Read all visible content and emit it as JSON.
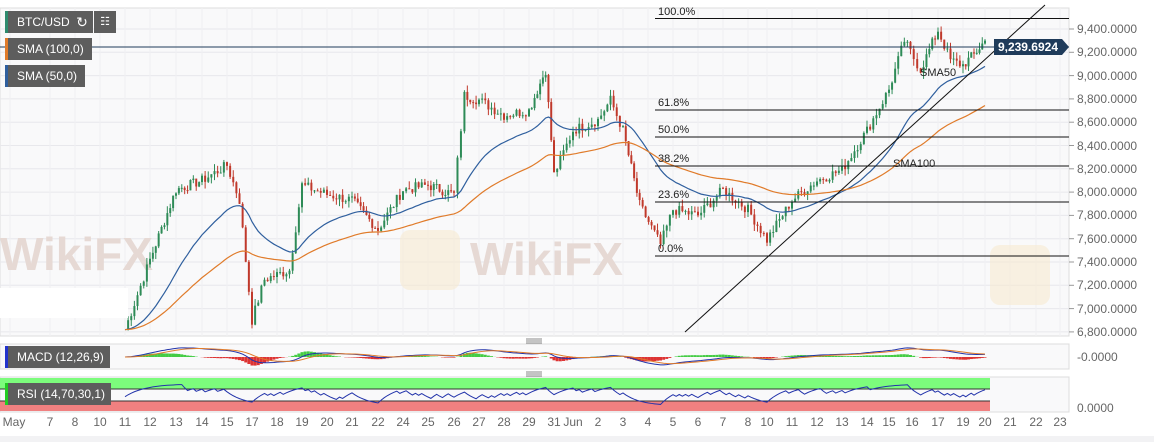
{
  "toolbar": {
    "symbol": "BTC/USD",
    "refresh_icon": "refresh-icon",
    "bars_icon": "bar-chart-icon"
  },
  "indicators": {
    "sma100": "SMA (100,0)",
    "sma50": "SMA (50,0)",
    "macd": "MACD (12,26,9)",
    "rsi": "RSI (14,70,30,1)"
  },
  "colors": {
    "up": "#2e8b57",
    "down": "#c0392b",
    "sma50": "#2f5f9e",
    "sma100": "#e07b2a",
    "current_price": "#1f3b5a",
    "rsi_overbought": "#7cfc7c",
    "rsi_oversold": "#f08080"
  },
  "current_price": "9,239.6924",
  "chart_data": {
    "type": "line",
    "y_ticks": [
      "9,400.0000",
      "9,200.0000",
      "9,000.0000",
      "8,800.0000",
      "8,600.0000",
      "8,400.0000",
      "8,200.0000",
      "8,000.0000",
      "7,800.0000",
      "7,600.0000",
      "7,400.0000",
      "7,200.0000",
      "7,000.0000",
      "6,800.0000"
    ],
    "ylim": [
      6800,
      9400
    ],
    "x_ticks": [
      "May",
      "7",
      "8",
      "10",
      "11",
      "12",
      "13",
      "14",
      "15",
      "17",
      "18",
      "19",
      "20",
      "21",
      "22",
      "24",
      "25",
      "26",
      "27",
      "28",
      "29",
      "31",
      "Jun",
      "2",
      "3",
      "4",
      "5",
      "6",
      "7",
      "8",
      "10",
      "11",
      "12",
      "13",
      "14",
      "15",
      "16",
      "17",
      "19",
      "20",
      "21",
      "22",
      "23"
    ],
    "price": [
      [
        "05-11 00:00",
        6820
      ],
      [
        "05-12 00:00",
        7420
      ],
      [
        "05-13 00:00",
        8020
      ],
      [
        "05-14 00:00",
        8100
      ],
      [
        "05-15 00:00",
        8230
      ],
      [
        "05-16 00:00",
        7930
      ],
      [
        "05-17 00:00",
        6900
      ],
      [
        "05-17 12:00",
        7250
      ],
      [
        "05-18 12:00",
        7330
      ],
      [
        "05-19 00:00",
        8060
      ],
      [
        "05-20 00:00",
        7980
      ],
      [
        "05-21 00:00",
        7930
      ],
      [
        "05-22 00:00",
        7680
      ],
      [
        "05-24 00:00",
        8020
      ],
      [
        "05-25 00:00",
        8060
      ],
      [
        "05-26 00:00",
        7980
      ],
      [
        "05-26 10:00",
        8830
      ],
      [
        "05-27 00:00",
        8790
      ],
      [
        "05-28 00:00",
        8660
      ],
      [
        "05-29 00:00",
        8700
      ],
      [
        "05-30 08:00",
        9050
      ],
      [
        "05-31 00:00",
        8150
      ],
      [
        "06-01 00:00",
        8530
      ],
      [
        "06-02 00:00",
        8620
      ],
      [
        "06-02 12:00",
        8790
      ],
      [
        "06-03 00:00",
        8530
      ],
      [
        "06-03 16:00",
        7890
      ],
      [
        "06-04 12:00",
        7550
      ],
      [
        "06-05 00:00",
        7850
      ],
      [
        "06-06 00:00",
        7800
      ],
      [
        "06-07 00:00",
        8020
      ],
      [
        "06-08 00:00",
        7850
      ],
      [
        "06-10 00:00",
        7590
      ],
      [
        "06-11 00:00",
        7930
      ],
      [
        "06-12 00:00",
        8100
      ],
      [
        "06-13 00:00",
        8190
      ],
      [
        "06-14 00:00",
        8530
      ],
      [
        "06-15 00:00",
        8880
      ],
      [
        "06-15 16:00",
        9300
      ],
      [
        "06-16 08:00",
        9050
      ],
      [
        "06-17 00:00",
        9390
      ],
      [
        "06-18 00:00",
        9130
      ],
      [
        "06-19 00:00",
        9090
      ],
      [
        "06-19 12:00",
        9180
      ],
      [
        "06-20 00:00",
        9300
      ]
    ],
    "fibonacci": [
      {
        "label": "100.0%",
        "value": 9490
      },
      {
        "label": "61.8%",
        "value": 8705
      },
      {
        "label": "50.0%",
        "value": 8473
      },
      {
        "label": "38.2%",
        "value": 8224
      },
      {
        "label": "23.6%",
        "value": 7915
      },
      {
        "label": "0.0%",
        "value": 7452
      }
    ],
    "annotations": [
      {
        "text": "SMA50",
        "value": 9030
      },
      {
        "text": "SMA100",
        "value": 8250
      }
    ],
    "macd_axis": "-0.0000",
    "rsi_axis": "0.0000"
  },
  "watermark": "WikiFX"
}
